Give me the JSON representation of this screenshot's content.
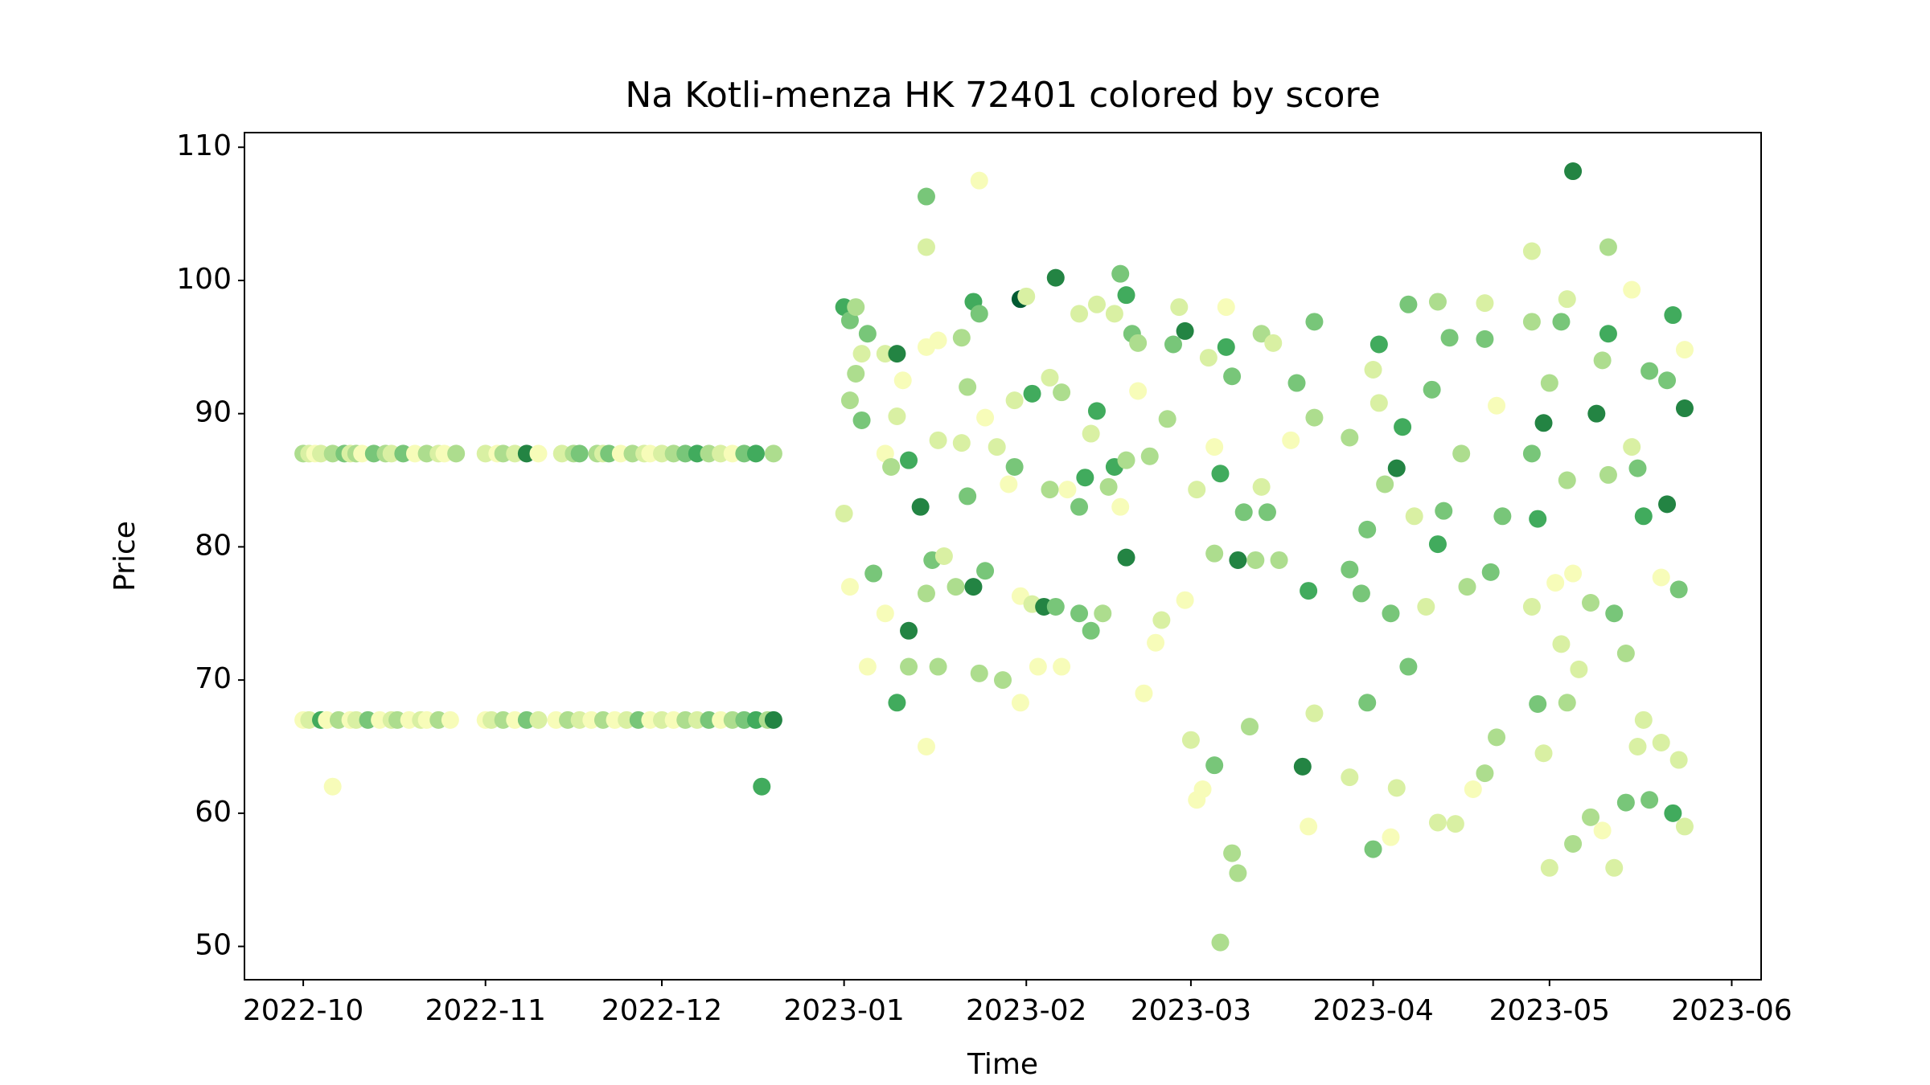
{
  "chart_data": {
    "type": "scatter",
    "title": "Na Kotli-menza HK 72401 colored by score",
    "xlabel": "Time",
    "ylabel": "Price",
    "xlim": [
      "2022-09-21",
      "2023-06-06"
    ],
    "xticks": [
      "2022-10",
      "2022-11",
      "2022-12",
      "2023-01",
      "2023-02",
      "2023-03",
      "2023-04",
      "2023-05",
      "2023-06"
    ],
    "ylim": [
      47.5,
      111.1
    ],
    "yticks": [
      50,
      60,
      70,
      80,
      90,
      100,
      110
    ],
    "x": [
      "2022-10-01",
      "2022-10-02",
      "2022-10-03",
      "2022-10-04",
      "2022-10-06",
      "2022-10-08",
      "2022-10-09",
      "2022-10-10",
      "2022-10-11",
      "2022-10-13",
      "2022-10-15",
      "2022-10-16",
      "2022-10-18",
      "2022-10-20",
      "2022-10-22",
      "2022-10-24",
      "2022-10-25",
      "2022-10-27",
      "2022-11-01",
      "2022-11-03",
      "2022-11-04",
      "2022-11-06",
      "2022-11-08",
      "2022-11-10",
      "2022-11-14",
      "2022-11-16",
      "2022-11-17",
      "2022-11-20",
      "2022-11-21",
      "2022-11-22",
      "2022-11-24",
      "2022-11-26",
      "2022-11-28",
      "2022-11-29",
      "2022-12-01",
      "2022-12-03",
      "2022-12-05",
      "2022-12-07",
      "2022-12-09",
      "2022-12-11",
      "2022-12-13",
      "2022-12-15",
      "2022-12-17",
      "2022-12-20",
      "2022-10-01",
      "2022-10-02",
      "2022-10-04",
      "2022-10-05",
      "2022-10-07",
      "2022-10-09",
      "2022-10-10",
      "2022-10-12",
      "2022-10-14",
      "2022-10-16",
      "2022-10-17",
      "2022-10-19",
      "2022-10-21",
      "2022-10-22",
      "2022-10-24",
      "2022-10-26",
      "2022-11-01",
      "2022-11-02",
      "2022-11-04",
      "2022-11-06",
      "2022-11-08",
      "2022-11-10",
      "2022-11-13",
      "2022-11-15",
      "2022-11-17",
      "2022-11-19",
      "2022-11-21",
      "2022-11-23",
      "2022-11-25",
      "2022-11-27",
      "2022-11-29",
      "2022-12-01",
      "2022-12-03",
      "2022-12-05",
      "2022-12-07",
      "2022-12-09",
      "2022-12-11",
      "2022-12-13",
      "2022-12-15",
      "2022-12-17",
      "2022-12-19",
      "2022-12-20",
      "2022-10-06",
      "2022-12-18",
      "2023-01-01",
      "2023-01-02",
      "2023-01-03",
      "2023-01-01",
      "2023-01-02",
      "2023-01-02",
      "2023-01-03",
      "2023-01-04",
      "2023-01-04",
      "2023-01-05",
      "2023-01-05",
      "2023-01-06",
      "2023-01-08",
      "2023-01-08",
      "2023-01-08",
      "2023-01-09",
      "2023-01-10",
      "2023-01-10",
      "2023-01-10",
      "2023-01-11",
      "2023-01-12",
      "2023-01-12",
      "2023-01-12",
      "2023-01-14",
      "2023-01-15",
      "2023-01-15",
      "2023-01-15",
      "2023-01-15",
      "2023-01-15",
      "2023-01-16",
      "2023-01-17",
      "2023-01-17",
      "2023-01-17",
      "2023-01-18",
      "2023-01-20",
      "2023-01-21",
      "2023-01-21",
      "2023-01-22",
      "2023-01-22",
      "2023-01-23",
      "2023-01-23",
      "2023-01-24",
      "2023-01-24",
      "2023-01-24",
      "2023-01-25",
      "2023-01-25",
      "2023-01-27",
      "2023-01-28",
      "2023-01-29",
      "2023-01-30",
      "2023-01-30",
      "2023-01-31",
      "2023-01-31",
      "2023-01-31",
      "2023-02-01",
      "2023-02-02",
      "2023-02-02",
      "2023-02-03",
      "2023-02-04",
      "2023-02-05",
      "2023-02-05",
      "2023-02-06",
      "2023-02-06",
      "2023-02-07",
      "2023-02-07",
      "2023-02-08",
      "2023-02-10",
      "2023-02-10",
      "2023-02-10",
      "2023-02-11",
      "2023-02-12",
      "2023-02-12",
      "2023-02-13",
      "2023-02-13",
      "2023-02-14",
      "2023-02-15",
      "2023-02-16",
      "2023-02-16",
      "2023-02-17",
      "2023-02-17",
      "2023-02-18",
      "2023-02-18",
      "2023-02-18",
      "2023-02-19",
      "2023-02-20",
      "2023-02-20",
      "2023-02-21",
      "2023-02-22",
      "2023-02-23",
      "2023-02-24",
      "2023-02-25",
      "2023-02-26",
      "2023-02-27",
      "2023-02-28",
      "2023-02-28",
      "2023-03-01",
      "2023-03-02",
      "2023-03-02",
      "2023-03-03",
      "2023-03-04",
      "2023-03-05",
      "2023-03-05",
      "2023-03-05",
      "2023-03-06",
      "2023-03-06",
      "2023-03-07",
      "2023-03-07",
      "2023-03-08",
      "2023-03-08",
      "2023-03-09",
      "2023-03-09",
      "2023-03-10",
      "2023-03-11",
      "2023-03-12",
      "2023-03-13",
      "2023-03-13",
      "2023-03-14",
      "2023-03-15",
      "2023-03-16",
      "2023-03-18",
      "2023-03-19",
      "2023-03-20",
      "2023-03-21",
      "2023-03-21",
      "2023-03-22",
      "2023-03-22",
      "2023-03-22",
      "2023-03-28",
      "2023-03-28",
      "2023-03-28",
      "2023-03-30",
      "2023-03-31",
      "2023-03-31",
      "2023-04-01",
      "2023-04-01",
      "2023-04-02",
      "2023-04-02",
      "2023-04-03",
      "2023-04-04",
      "2023-04-04",
      "2023-04-05",
      "2023-04-05",
      "2023-04-06",
      "2023-04-07",
      "2023-04-07",
      "2023-04-08",
      "2023-04-10",
      "2023-04-11",
      "2023-04-12",
      "2023-04-12",
      "2023-04-12",
      "2023-04-13",
      "2023-04-14",
      "2023-04-15",
      "2023-04-16",
      "2023-04-17",
      "2023-04-18",
      "2023-04-20",
      "2023-04-20",
      "2023-04-20",
      "2023-04-21",
      "2023-04-22",
      "2023-04-22",
      "2023-04-23",
      "2023-04-28",
      "2023-04-28",
      "2023-04-28",
      "2023-04-28",
      "2023-04-29",
      "2023-04-29",
      "2023-04-30",
      "2023-04-30",
      "2023-05-01",
      "2023-05-01",
      "2023-05-02",
      "2023-05-03",
      "2023-05-03",
      "2023-05-04",
      "2023-05-04",
      "2023-05-04",
      "2023-05-05",
      "2023-05-05",
      "2023-05-05",
      "2023-05-06",
      "2023-05-08",
      "2023-05-08",
      "2023-05-09",
      "2023-05-10",
      "2023-05-10",
      "2023-05-11",
      "2023-05-11",
      "2023-05-11",
      "2023-05-12",
      "2023-05-12",
      "2023-05-14",
      "2023-05-14",
      "2023-05-15",
      "2023-05-15",
      "2023-05-16",
      "2023-05-16",
      "2023-05-17",
      "2023-05-17",
      "2023-05-18",
      "2023-05-18",
      "2023-05-20",
      "2023-05-20",
      "2023-05-21",
      "2023-05-21",
      "2023-05-22",
      "2023-05-22",
      "2023-05-23",
      "2023-05-23",
      "2023-05-24",
      "2023-05-24",
      "2023-05-24"
    ],
    "values": [
      87,
      87,
      87,
      87,
      87,
      87,
      87,
      87,
      87,
      87,
      87,
      87,
      87,
      87,
      87,
      87,
      87,
      87,
      87,
      87,
      87,
      87,
      87,
      87,
      87,
      87,
      87,
      87,
      87,
      87,
      87,
      87,
      87,
      87,
      87,
      87,
      87,
      87,
      87,
      87,
      87,
      87,
      87,
      87,
      67,
      67,
      67,
      67,
      67,
      67,
      67,
      67,
      67,
      67,
      67,
      67,
      67,
      67,
      67,
      67,
      67,
      67,
      67,
      67,
      67,
      67,
      67,
      67,
      67,
      67,
      67,
      67,
      67,
      67,
      67,
      67,
      67,
      67,
      67,
      67,
      67,
      67,
      67,
      67,
      67,
      67,
      62,
      62,
      98,
      97,
      98,
      82.5,
      91,
      77,
      93,
      89.5,
      94.5,
      96,
      71,
      78,
      94.5,
      87,
      75,
      86,
      94.5,
      68.3,
      89.8,
      92.5,
      86.5,
      73.7,
      71,
      83,
      106.3,
      102.5,
      95,
      76.5,
      65,
      79,
      88,
      71,
      95.5,
      79.3,
      77,
      95.7,
      87.8,
      92,
      83.8,
      98.4,
      77,
      97.5,
      107.5,
      70.5,
      78.2,
      89.7,
      87.5,
      70,
      84.7,
      91,
      86,
      98.6,
      76.3,
      68.3,
      98.8,
      91.5,
      75.7,
      71,
      75.5,
      92.7,
      84.3,
      100.2,
      75.5,
      91.6,
      71,
      84.3,
      97.5,
      83,
      75,
      85.2,
      88.5,
      73.7,
      98.2,
      90.2,
      75,
      84.5,
      97.5,
      86,
      100.5,
      83,
      98.9,
      86.5,
      79.2,
      96,
      95.3,
      91.7,
      69,
      86.8,
      72.8,
      74.5,
      89.6,
      95.2,
      98,
      96.2,
      76,
      65.5,
      61,
      84.3,
      61.8,
      94.2,
      87.5,
      79.5,
      63.6,
      50.3,
      85.5,
      98,
      95,
      92.8,
      57,
      55.5,
      79,
      82.6,
      66.5,
      79,
      96,
      84.5,
      82.6,
      95.3,
      79,
      88,
      92.3,
      63.5,
      76.7,
      59,
      89.7,
      96.9,
      67.5,
      88.2,
      78.3,
      62.7,
      76.5,
      81.3,
      68.3,
      93.3,
      57.3,
      95.2,
      90.8,
      84.7,
      75,
      58.2,
      61.9,
      85.9,
      89,
      98.2,
      71,
      82.3,
      75.5,
      91.8,
      98.4,
      80.2,
      59.3,
      82.7,
      95.7,
      59.2,
      87,
      77,
      61.8,
      98.3,
      95.6,
      63,
      78.1,
      90.6,
      65.7,
      82.3,
      102.2,
      96.9,
      87,
      75.5,
      82.1,
      68.2,
      89.3,
      64.5,
      92.3,
      55.9,
      77.3,
      96.9,
      72.7,
      98.6,
      85,
      68.3,
      108.2,
      78,
      57.7,
      70.8,
      75.8,
      59.7,
      90,
      94,
      58.7,
      102.5,
      96,
      85.4,
      75,
      55.9,
      72,
      60.8,
      99.3,
      87.5,
      85.9,
      65,
      82.3,
      67,
      93.2,
      61,
      77.7,
      65.3,
      83.2,
      92.5,
      97.4,
      60,
      64,
      76.8,
      90.4,
      94.8,
      59
    ],
    "colors": [
      "#addd8e",
      "#d9f0a3",
      "#f7fcb9",
      "#d9f0a3",
      "#addd8e",
      "#78c679",
      "#d9f0a3",
      "#addd8e",
      "#f7fcb9",
      "#78c679",
      "#addd8e",
      "#d9f0a3",
      "#78c679",
      "#f7fcb9",
      "#addd8e",
      "#d9f0a3",
      "#f7fcb9",
      "#addd8e",
      "#d9f0a3",
      "#f7fcb9",
      "#addd8e",
      "#d9f0a3",
      "#238443",
      "#f7fcb9",
      "#d9f0a3",
      "#addd8e",
      "#78c679",
      "#addd8e",
      "#d9f0a3",
      "#78c679",
      "#f7fcb9",
      "#addd8e",
      "#d9f0a3",
      "#f7fcb9",
      "#d9f0a3",
      "#addd8e",
      "#78c679",
      "#41ab5d",
      "#addd8e",
      "#d9f0a3",
      "#f7fcb9",
      "#78c679",
      "#41ab5d",
      "#addd8e",
      "#f7fcb9",
      "#d9f0a3",
      "#41ab5d",
      "#f7fcb9",
      "#addd8e",
      "#f7fcb9",
      "#d9f0a3",
      "#78c679",
      "#f7fcb9",
      "#d9f0a3",
      "#addd8e",
      "#f7fcb9",
      "#d9f0a3",
      "#f7fcb9",
      "#addd8e",
      "#f7fcb9",
      "#f7fcb9",
      "#d9f0a3",
      "#addd8e",
      "#f7fcb9",
      "#78c679",
      "#d9f0a3",
      "#f7fcb9",
      "#addd8e",
      "#d9f0a3",
      "#f7fcb9",
      "#addd8e",
      "#f7fcb9",
      "#d9f0a3",
      "#78c679",
      "#f7fcb9",
      "#d9f0a3",
      "#f7fcb9",
      "#addd8e",
      "#d9f0a3",
      "#78c679",
      "#f7fcb9",
      "#addd8e",
      "#78c679",
      "#41ab5d",
      "#addd8e",
      "#238443",
      "#f7fcb9",
      "#41ab5d",
      "#41ab5d",
      "#78c679",
      "#addd8e",
      "#d9f0a3",
      "#addd8e",
      "#f7fcb9",
      "#addd8e",
      "#78c679",
      "#d9f0a3",
      "#78c679",
      "#f7fcb9",
      "#78c679",
      "#d9f0a3",
      "#f7fcb9",
      "#f7fcb9",
      "#addd8e",
      "#238443",
      "#41ab5d",
      "#d9f0a3",
      "#f7fcb9",
      "#41ab5d",
      "#238443",
      "#addd8e",
      "#238443",
      "#78c679",
      "#d9f0a3",
      "#f7fcb9",
      "#addd8e",
      "#f7fcb9",
      "#78c679",
      "#d9f0a3",
      "#addd8e",
      "#f7fcb9",
      "#d9f0a3",
      "#addd8e",
      "#addd8e",
      "#d9f0a3",
      "#addd8e",
      "#78c679",
      "#41ab5d",
      "#238443",
      "#78c679",
      "#f7fcb9",
      "#addd8e",
      "#78c679",
      "#f7fcb9",
      "#d9f0a3",
      "#addd8e",
      "#f7fcb9",
      "#d9f0a3",
      "#78c679",
      "#005a32",
      "#f7fcb9",
      "#f7fcb9",
      "#d9f0a3",
      "#41ab5d",
      "#d9f0a3",
      "#f7fcb9",
      "#238443",
      "#d9f0a3",
      "#addd8e",
      "#238443",
      "#78c679",
      "#addd8e",
      "#f7fcb9",
      "#f7fcb9",
      "#d9f0a3",
      "#78c679",
      "#78c679",
      "#41ab5d",
      "#d9f0a3",
      "#78c679",
      "#d9f0a3",
      "#41ab5d",
      "#addd8e",
      "#addd8e",
      "#d9f0a3",
      "#41ab5d",
      "#78c679",
      "#f7fcb9",
      "#41ab5d",
      "#addd8e",
      "#238443",
      "#78c679",
      "#addd8e",
      "#f7fcb9",
      "#f7fcb9",
      "#addd8e",
      "#f7fcb9",
      "#d9f0a3",
      "#addd8e",
      "#78c679",
      "#d9f0a3",
      "#238443",
      "#f7fcb9",
      "#d9f0a3",
      "#f7fcb9",
      "#d9f0a3",
      "#f7fcb9",
      "#d9f0a3",
      "#f7fcb9",
      "#addd8e",
      "#78c679",
      "#addd8e",
      "#41ab5d",
      "#f7fcb9",
      "#41ab5d",
      "#78c679",
      "#addd8e",
      "#addd8e",
      "#238443",
      "#78c679",
      "#addd8e",
      "#addd8e",
      "#addd8e",
      "#d9f0a3",
      "#78c679",
      "#d9f0a3",
      "#addd8e",
      "#f7fcb9",
      "#78c679",
      "#238443",
      "#41ab5d",
      "#f7fcb9",
      "#addd8e",
      "#78c679",
      "#d9f0a3",
      "#addd8e",
      "#78c679",
      "#d9f0a3",
      "#78c679",
      "#78c679",
      "#78c679",
      "#d9f0a3",
      "#78c679",
      "#41ab5d",
      "#d9f0a3",
      "#addd8e",
      "#78c679",
      "#f7fcb9",
      "#d9f0a3",
      "#238443",
      "#41ab5d",
      "#78c679",
      "#78c679",
      "#d9f0a3",
      "#d9f0a3",
      "#78c679",
      "#addd8e",
      "#41ab5d",
      "#d9f0a3",
      "#78c679",
      "#78c679",
      "#d9f0a3",
      "#addd8e",
      "#addd8e",
      "#f7fcb9",
      "#d9f0a3",
      "#78c679",
      "#addd8e",
      "#78c679",
      "#f7fcb9",
      "#addd8e",
      "#78c679",
      "#d9f0a3",
      "#addd8e",
      "#78c679",
      "#d9f0a3",
      "#41ab5d",
      "#78c679",
      "#238443",
      "#d9f0a3",
      "#addd8e",
      "#d9f0a3",
      "#f7fcb9",
      "#78c679",
      "#d9f0a3",
      "#d9f0a3",
      "#addd8e",
      "#addd8e",
      "#238443",
      "#f7fcb9",
      "#addd8e",
      "#d9f0a3",
      "#addd8e",
      "#addd8e",
      "#238443",
      "#addd8e",
      "#f7fcb9",
      "#addd8e",
      "#41ab5d",
      "#addd8e",
      "#78c679",
      "#d9f0a3",
      "#addd8e",
      "#78c679",
      "#f7fcb9",
      "#d9f0a3",
      "#78c679",
      "#d9f0a3",
      "#41ab5d",
      "#d9f0a3",
      "#78c679",
      "#78c679",
      "#f7fcb9",
      "#d9f0a3",
      "#238443",
      "#78c679",
      "#41ab5d",
      "#41ab5d",
      "#d9f0a3",
      "#78c679",
      "#238443",
      "#f7fcb9",
      "#d9f0a3"
    ]
  }
}
